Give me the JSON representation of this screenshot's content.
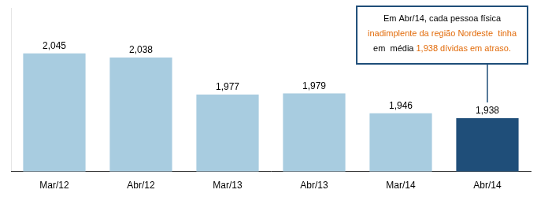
{
  "chart_data": {
    "type": "bar",
    "categories": [
      "Mar/12",
      "Abr/12",
      "Mar/13",
      "Abr/13",
      "Mar/14",
      "Abr/14"
    ],
    "values": [
      2.045,
      2.038,
      1.977,
      1.979,
      1.946,
      1.938
    ],
    "value_labels": [
      "2,045",
      "2,038",
      "1,977",
      "1,979",
      "1,946",
      "1,938"
    ],
    "data_labels": true,
    "colors": [
      "#a8cce0",
      "#a8cce0",
      "#a8cce0",
      "#a8cce0",
      "#a8cce0",
      "#1f4e79"
    ],
    "ylim": [
      1.85,
      2.12
    ],
    "tick_labels": "x",
    "grid": false,
    "annotation": {
      "color": "#1f4e79",
      "lines": [
        [
          {
            "text": "Em Abr/14, cada pessoa física",
            "color": "#000000"
          }
        ],
        [
          {
            "text": "inadimplente da região Nordeste  tinha",
            "color": "#e26b0a"
          }
        ],
        [
          {
            "text": "em  média ",
            "color": "#000000"
          },
          {
            "text": "1,938 dívidas em atraso.",
            "color": "#e26b0a"
          }
        ]
      ]
    }
  }
}
